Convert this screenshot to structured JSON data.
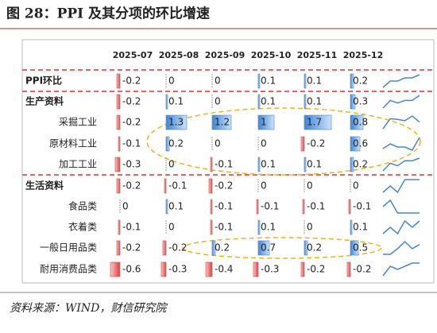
{
  "title": "图 28：PPI 及其分项的环比增速",
  "table": {
    "columns": [
      "2025-07",
      "2025-08",
      "2025-09",
      "2025-10",
      "2025-11",
      "2025-12"
    ],
    "rows": [
      {
        "label": "PPI环比",
        "values": [
          -0.2,
          0,
          0,
          0.1,
          0.1,
          0.2
        ]
      },
      {
        "label": "生产资料",
        "values": [
          -0.2,
          0.1,
          0,
          0.1,
          0.1,
          0.3
        ]
      },
      {
        "label": "采掘工业",
        "values": [
          -0.2,
          1.3,
          1.2,
          1,
          1.7,
          0.8
        ]
      },
      {
        "label": "原材料工业",
        "values": [
          -0.1,
          0.2,
          0,
          0,
          -0.2,
          0.6
        ]
      },
      {
        "label": "加工工业",
        "values": [
          -0.3,
          0,
          -0.1,
          0.1,
          0.1,
          0.2
        ]
      },
      {
        "label": "生活资料",
        "values": [
          -0.2,
          -0.1,
          -0.2,
          0,
          0,
          0
        ]
      },
      {
        "label": "食品类",
        "values": [
          0,
          0.1,
          -0.1,
          -0.1,
          -0.1,
          -0.1
        ]
      },
      {
        "label": "衣着类",
        "values": [
          -0.1,
          0,
          -0.1,
          0.1,
          0,
          0.1
        ]
      },
      {
        "label": "一般日用品类",
        "values": [
          -0.2,
          -0.2,
          0.2,
          0.7,
          0.2,
          0.5
        ]
      },
      {
        "label": "耐用消费品类",
        "values": [
          -0.6,
          -0.3,
          -0.4,
          -0.3,
          -0.2,
          -0.2
        ]
      }
    ]
  },
  "source": "资料来源：WIND，财信研究院"
}
